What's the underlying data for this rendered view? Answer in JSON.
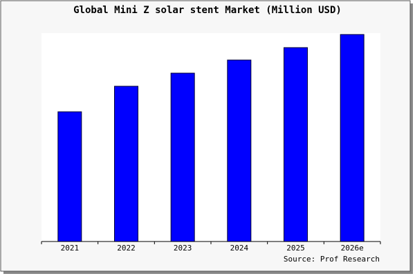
{
  "chart_data": {
    "type": "bar",
    "title": "Global Mini Z solar stent Market (Million USD)",
    "categories": [
      "2021",
      "2022",
      "2023",
      "2024",
      "2025",
      "2026e"
    ],
    "values": [
      188,
      225,
      244,
      263,
      281,
      300
    ],
    "color": "#0000ff",
    "ylim": [
      0,
      302
    ],
    "source": "Source: Prof Research"
  }
}
